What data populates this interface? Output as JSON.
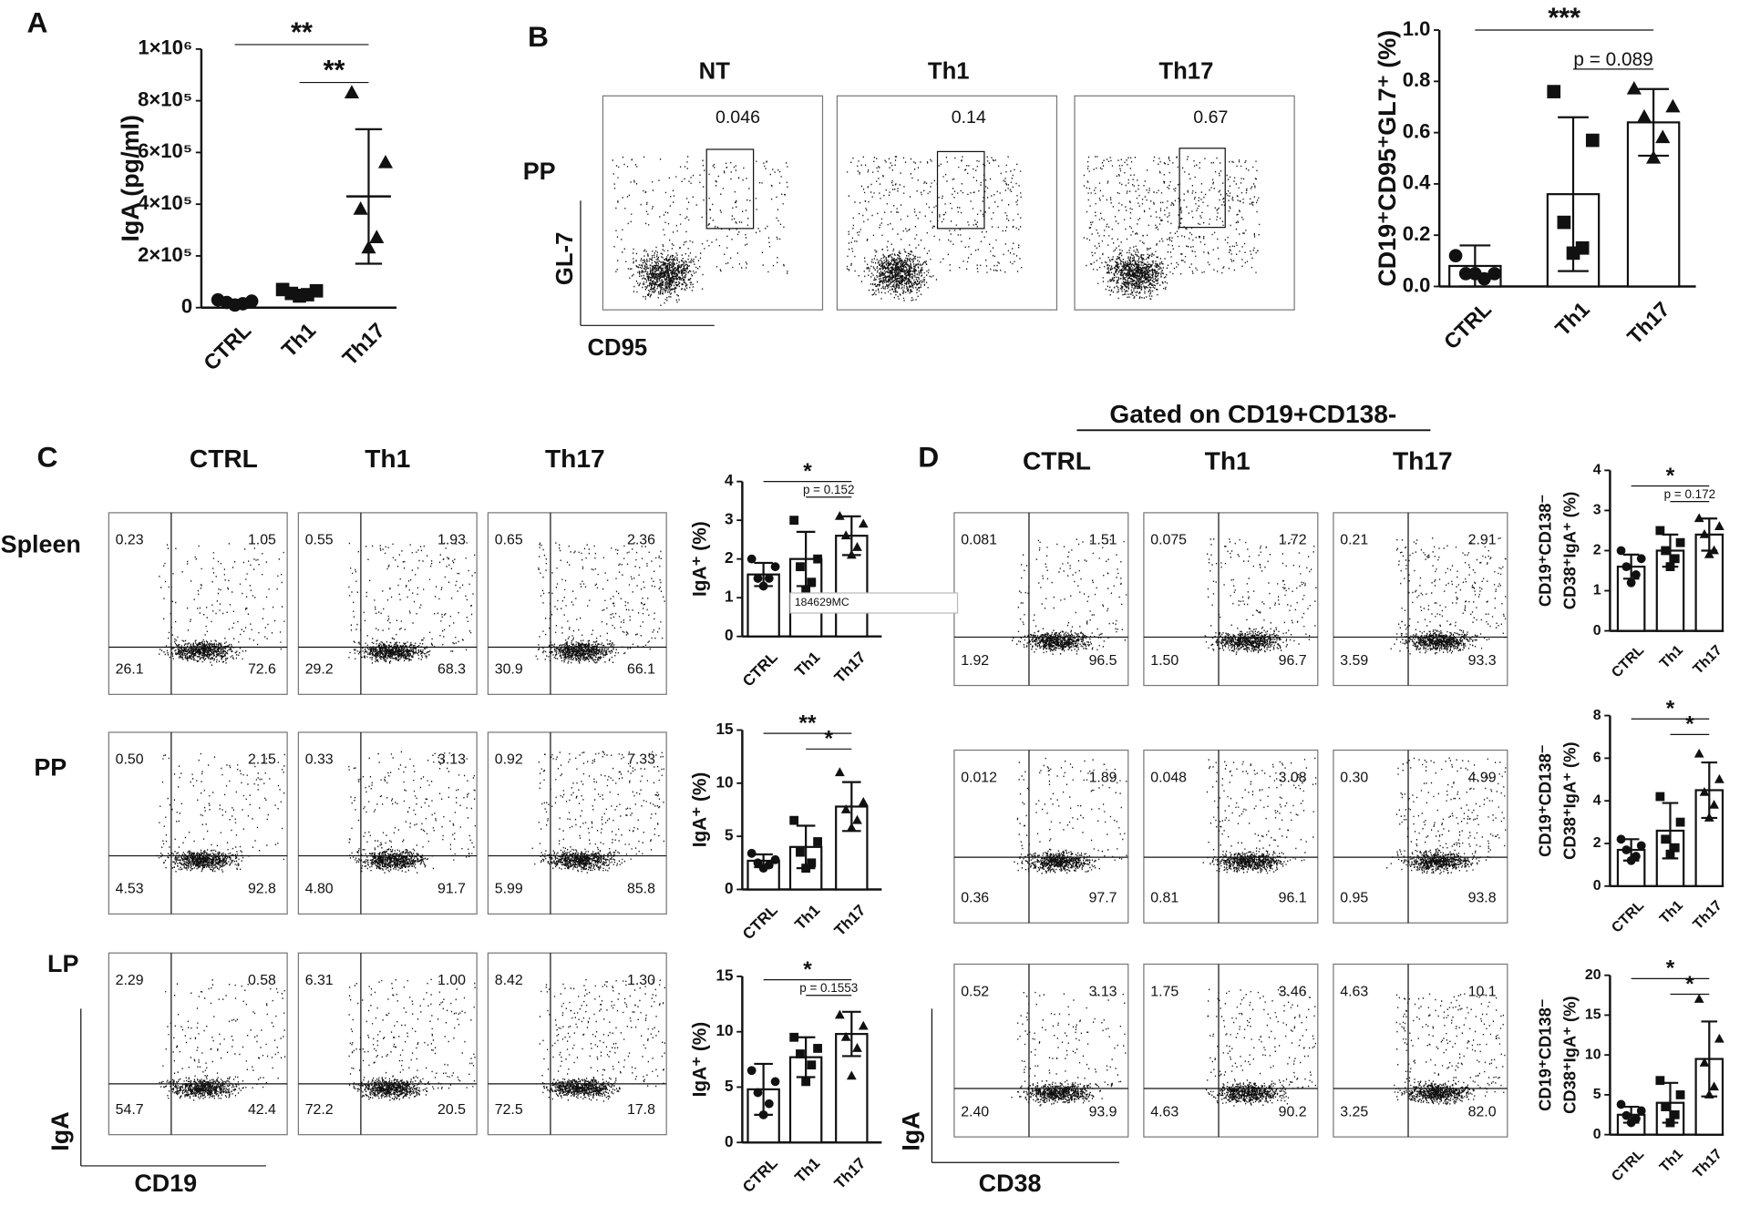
{
  "panel_labels": [
    "A",
    "B",
    "C",
    "D"
  ],
  "chart_data": [
    {
      "type": "dot",
      "ylabel": "IgA (pg/ml)",
      "categories": [
        "CTRL",
        "Th1",
        "Th17"
      ],
      "values": [
        20000,
        57000,
        430000
      ],
      "errors": [
        10000,
        12000,
        260000
      ],
      "points": [
        [
          30000,
          25000,
          20000,
          15000,
          10000
        ],
        [
          70000,
          65000,
          55000,
          50000,
          45000
        ],
        [
          830000,
          560000,
          380000,
          270000,
          230000
        ]
      ],
      "markers": [
        "circle",
        "square",
        "triangle"
      ],
      "ylim": [
        0,
        1000000
      ],
      "yticks": [
        0,
        {
          "value": 200000,
          "label": "2×10⁵"
        },
        {
          "value": 400000,
          "label": "4×10⁵"
        },
        {
          "value": 600000,
          "label": "6×10⁵"
        },
        {
          "value": 800000,
          "label": "8×10⁵"
        },
        {
          "value": 1000000,
          "label": "1×10⁶"
        }
      ],
      "significance": [
        {
          "label": "**",
          "between": [
            "CTRL",
            "Th17"
          ]
        },
        {
          "label": "**",
          "between": [
            "Th1",
            "Th17"
          ]
        }
      ]
    },
    {
      "type": "bar",
      "ylabel": "CD19⁺CD95⁺GL7⁺ (%)",
      "categories": [
        "CTRL",
        "Th1",
        "Th17"
      ],
      "values": [
        0.08,
        0.36,
        0.64
      ],
      "errors": [
        0.08,
        0.3,
        0.13
      ],
      "points": [
        [
          0.12,
          0.05,
          0.05,
          0.03,
          0.05
        ],
        [
          0.76,
          0.57,
          0.25,
          0.15,
          0.13
        ],
        [
          0.77,
          0.7,
          0.66,
          0.58,
          0.5
        ]
      ],
      "markers": [
        "circle",
        "square",
        "triangle"
      ],
      "ylim": [
        0,
        1.0
      ],
      "yticks": [
        {
          "value": 0,
          "label": "0.0"
        },
        0.2,
        0.4,
        0.6,
        0.8,
        {
          "value": 1.0,
          "label": "1.0"
        }
      ],
      "significance": [
        {
          "label": "***",
          "between": [
            "CTRL",
            "Th17"
          ]
        },
        {
          "label": "p = 0.089",
          "between": [
            "Th1",
            "Th17"
          ]
        }
      ]
    },
    {
      "type": "bar",
      "ylabel": "IgA⁺ (%)",
      "categories": [
        "CTRL",
        "Th1",
        "Th17"
      ],
      "values": [
        1.6,
        2.0,
        2.6
      ],
      "errors": [
        0.3,
        0.7,
        0.5
      ],
      "points": [
        [
          2.0,
          1.8,
          1.5,
          1.5,
          1.3
        ],
        [
          3.0,
          2.0,
          1.8,
          1.4,
          1.2
        ],
        [
          3.1,
          2.9,
          2.6,
          2.3,
          2.1
        ]
      ],
      "markers": [
        "circle",
        "square",
        "triangle"
      ],
      "ylim": [
        0,
        4
      ],
      "yticks": [
        0,
        1,
        2,
        3,
        4
      ],
      "significance": [
        {
          "label": "*",
          "between": [
            "CTRL",
            "Th17"
          ]
        },
        {
          "label": "p = 0.152",
          "between": [
            "Th1",
            "Th17"
          ]
        }
      ]
    },
    {
      "type": "bar",
      "ylabel": "IgA⁺ (%)",
      "categories": [
        "CTRL",
        "Th1",
        "Th17"
      ],
      "values": [
        2.7,
        4.0,
        7.8
      ],
      "errors": [
        0.6,
        2.0,
        2.3
      ],
      "points": [
        [
          3.4,
          2.8,
          2.5,
          2.3,
          2.0
        ],
        [
          6.5,
          4.5,
          3.5,
          2.5,
          2.0
        ],
        [
          11,
          8.2,
          7.5,
          6.5,
          5.8
        ]
      ],
      "markers": [
        "circle",
        "square",
        "triangle"
      ],
      "ylim": [
        0,
        15
      ],
      "yticks": [
        0,
        5,
        10,
        15
      ],
      "significance": [
        {
          "label": "**",
          "between": [
            "CTRL",
            "Th17"
          ]
        },
        {
          "label": "*",
          "between": [
            "Th1",
            "Th17"
          ]
        }
      ]
    },
    {
      "type": "bar",
      "ylabel": "IgA⁺ (%)",
      "categories": [
        "CTRL",
        "Th1",
        "Th17"
      ],
      "values": [
        4.8,
        7.7,
        9.8
      ],
      "errors": [
        2.3,
        1.8,
        2.0
      ],
      "points": [
        [
          6.5,
          5.5,
          4.5,
          3.5,
          2.5
        ],
        [
          9.5,
          8.5,
          8,
          7,
          5.5
        ],
        [
          11.5,
          10.5,
          9.5,
          8.5,
          6
        ]
      ],
      "markers": [
        "circle",
        "square",
        "triangle"
      ],
      "ylim": [
        0,
        15
      ],
      "yticks": [
        0,
        5,
        10,
        15
      ],
      "significance": [
        {
          "label": "*",
          "between": [
            "CTRL",
            "Th17"
          ]
        },
        {
          "label": "p = 0.1553",
          "between": [
            "Th1",
            "Th17"
          ]
        }
      ]
    },
    {
      "type": "bar",
      "ylabel": [
        "CD19⁺CD138⁻",
        "CD38⁺IgA⁺ (%)"
      ],
      "categories": [
        "CTRL",
        "Th1",
        "Th17"
      ],
      "values": [
        1.6,
        2.0,
        2.4
      ],
      "errors": [
        0.3,
        0.4,
        0.4
      ],
      "points": [
        [
          2.0,
          1.8,
          1.6,
          1.4,
          1.2
        ],
        [
          2.5,
          2.2,
          2.0,
          1.8,
          1.6
        ],
        [
          2.8,
          2.6,
          2.4,
          2.0,
          1.9
        ]
      ],
      "markers": [
        "circle",
        "square",
        "triangle"
      ],
      "ylim": [
        0,
        4
      ],
      "yticks": [
        0,
        1,
        2,
        3,
        4
      ],
      "significance": [
        {
          "label": "*",
          "between": [
            "CTRL",
            "Th17"
          ]
        },
        {
          "label": "p = 0.172",
          "between": [
            "Th1",
            "Th17"
          ]
        }
      ]
    },
    {
      "type": "bar",
      "ylabel": [
        "CD19⁺CD138⁻",
        "CD38⁺IgA⁺ (%)"
      ],
      "categories": [
        "CTRL",
        "Th1",
        "Th17"
      ],
      "values": [
        1.7,
        2.6,
        4.5
      ],
      "errors": [
        0.5,
        1.3,
        1.3
      ],
      "points": [
        [
          2.2,
          1.9,
          1.7,
          1.4,
          1.2
        ],
        [
          4.2,
          3.0,
          2.2,
          1.8,
          1.5
        ],
        [
          6.2,
          5.0,
          4.4,
          3.8,
          3.2
        ]
      ],
      "markers": [
        "circle",
        "square",
        "triangle"
      ],
      "ylim": [
        0,
        8
      ],
      "yticks": [
        0,
        2,
        4,
        6,
        8
      ],
      "significance": [
        {
          "label": "*",
          "between": [
            "CTRL",
            "Th17"
          ]
        },
        {
          "label": "*",
          "between": [
            "Th1",
            "Th17"
          ]
        }
      ]
    },
    {
      "type": "bar",
      "ylabel": [
        "CD19⁺CD138⁻",
        "CD38⁺IgA⁺ (%)"
      ],
      "categories": [
        "CTRL",
        "Th1",
        "Th17"
      ],
      "values": [
        2.5,
        4.0,
        9.5
      ],
      "errors": [
        1.0,
        2.5,
        4.7
      ],
      "points": [
        [
          3.8,
          3.0,
          2.4,
          2.0,
          1.5
        ],
        [
          6.8,
          5.0,
          3.5,
          2.5,
          1.5
        ],
        [
          17,
          12,
          9,
          6,
          5
        ]
      ],
      "markers": [
        "circle",
        "square",
        "triangle"
      ],
      "ylim": [
        0,
        20
      ],
      "yticks": [
        0,
        5,
        10,
        15,
        20
      ],
      "significance": [
        {
          "label": "*",
          "between": [
            "CTRL",
            "Th17"
          ]
        },
        {
          "label": "*",
          "between": [
            "Th1",
            "Th17"
          ]
        }
      ]
    }
  ],
  "flow_B": {
    "columns": [
      "NT",
      "Th1",
      "Th17"
    ],
    "row_label": "PP",
    "gates": [
      "0.046",
      "0.14",
      "0.67"
    ],
    "x_label": "CD95",
    "y_label": "GL-7"
  },
  "flow_C": {
    "columns": [
      "CTRL",
      "Th1",
      "Th17"
    ],
    "rows": [
      "Spleen",
      "PP",
      "LP"
    ],
    "quadrants": [
      [
        [
          "0.23",
          "1.05",
          "26.1",
          "72.6"
        ],
        [
          "0.55",
          "1.93",
          "29.2",
          "68.3"
        ],
        [
          "0.65",
          "2.36",
          "30.9",
          "66.1"
        ]
      ],
      [
        [
          "0.50",
          "2.15",
          "4.53",
          "92.8"
        ],
        [
          "0.33",
          "3.13",
          "4.80",
          "91.7"
        ],
        [
          "0.92",
          "7.33",
          "5.99",
          "85.8"
        ]
      ],
      [
        [
          "2.29",
          "0.58",
          "54.7",
          "42.4"
        ],
        [
          "6.31",
          "1.00",
          "72.2",
          "20.5"
        ],
        [
          "8.42",
          "1.30",
          "72.5",
          "17.8"
        ]
      ]
    ],
    "x_label": "CD19",
    "y_label": "IgA"
  },
  "flow_D": {
    "header": "Gated on CD19+CD138-",
    "columns": [
      "CTRL",
      "Th1",
      "Th17"
    ],
    "quadrants": [
      [
        [
          "0.081",
          "1.51",
          "1.92",
          "96.5"
        ],
        [
          "0.075",
          "1.72",
          "1.50",
          "96.7"
        ],
        [
          "0.21",
          "2.91",
          "3.59",
          "93.3"
        ]
      ],
      [
        [
          "0.012",
          "1.89",
          "0.36",
          "97.7"
        ],
        [
          "0.048",
          "3.08",
          "0.81",
          "96.1"
        ],
        [
          "0.30",
          "4.99",
          "0.95",
          "93.8"
        ]
      ],
      [
        [
          "0.52",
          "3.13",
          "2.40",
          "93.9"
        ],
        [
          "1.75",
          "3.46",
          "4.63",
          "90.2"
        ],
        [
          "4.63",
          "10.1",
          "3.25",
          "82.0"
        ]
      ]
    ],
    "x_label": "CD38",
    "y_label": "IgA"
  },
  "overlay_label": "184629MC"
}
